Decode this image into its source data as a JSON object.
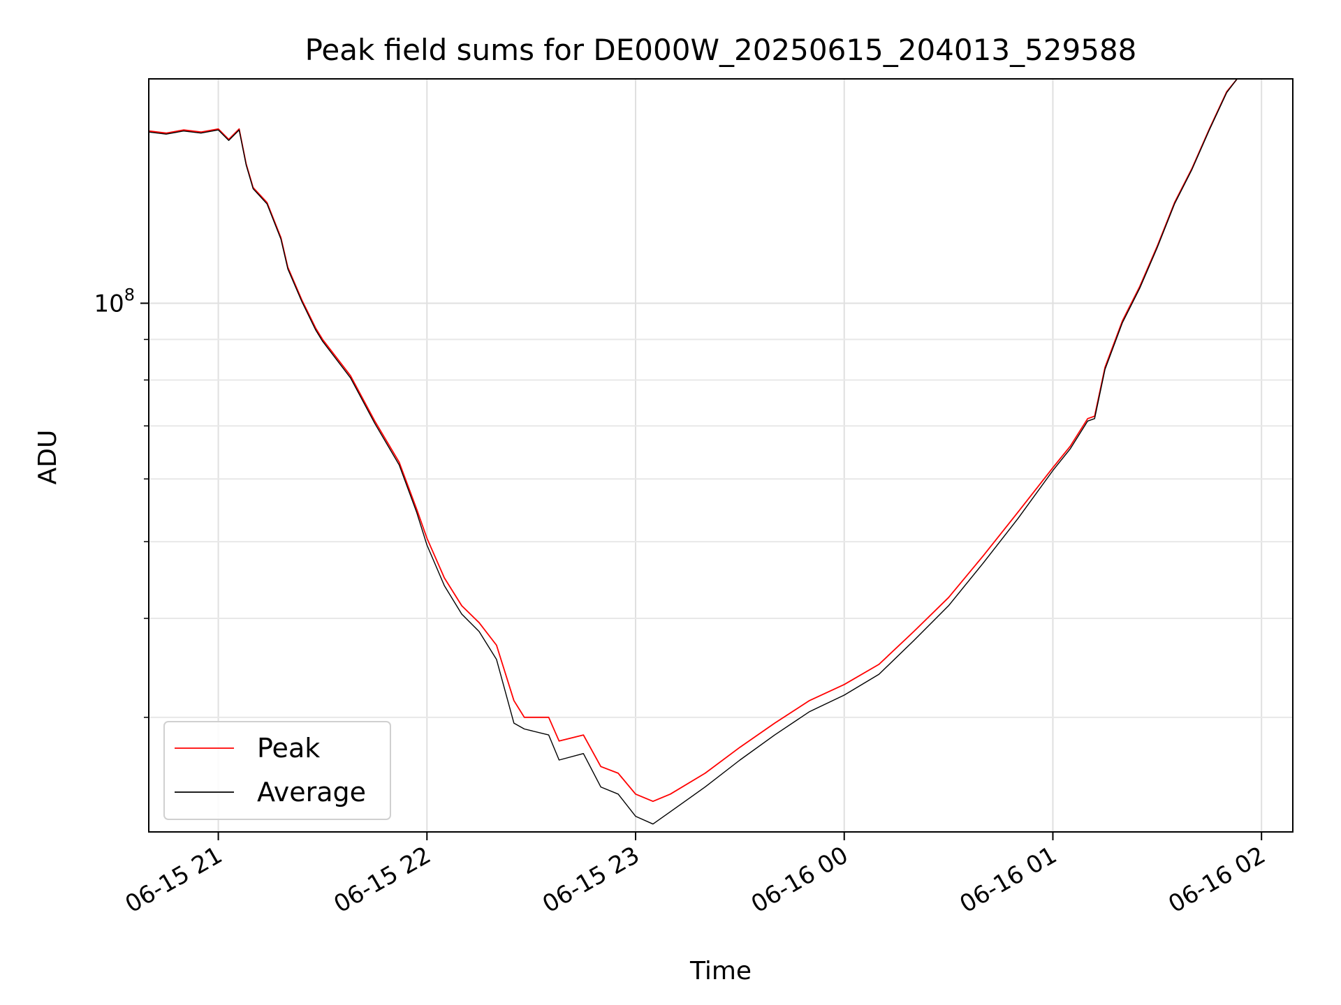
{
  "chart_data": {
    "type": "line",
    "title": "Peak field sums for DE000W_20250615_204013_529588",
    "xlabel": "Time",
    "ylabel": "ADU",
    "yscale": "log",
    "ylim": [
      21500000,
      192000000
    ],
    "xlim": [
      "2025-06-15 20:40",
      "2025-06-16 02:09"
    ],
    "x_ticks": [
      {
        "t": "2025-06-15 21:00",
        "label": "06-15 21"
      },
      {
        "t": "2025-06-15 22:00",
        "label": "06-15 22"
      },
      {
        "t": "2025-06-15 23:00",
        "label": "06-15 23"
      },
      {
        "t": "2025-06-16 00:00",
        "label": "06-16 00"
      },
      {
        "t": "2025-06-16 01:00",
        "label": "06-16 01"
      },
      {
        "t": "2025-06-16 02:00",
        "label": "06-16 02"
      }
    ],
    "y_ticks": [
      {
        "value": 100000000,
        "base": "10",
        "exp": "8"
      }
    ],
    "y_minor_ticks": [
      30000000,
      40000000,
      50000000,
      60000000,
      70000000,
      80000000,
      90000000
    ],
    "grid": true,
    "legend_position": "lower left",
    "colors": {
      "Peak": "#ff0000",
      "Average": "#000000"
    },
    "series": [
      {
        "name": "Peak",
        "x": [
          "2025-06-15 20:40",
          "2025-06-15 20:45",
          "2025-06-15 20:50",
          "2025-06-15 20:55",
          "2025-06-15 21:00",
          "2025-06-15 21:03",
          "2025-06-15 21:06",
          "2025-06-15 21:08",
          "2025-06-15 21:10",
          "2025-06-15 21:14",
          "2025-06-15 21:18",
          "2025-06-15 21:20",
          "2025-06-15 21:24",
          "2025-06-15 21:28",
          "2025-06-15 21:30",
          "2025-06-15 21:38",
          "2025-06-15 21:45",
          "2025-06-15 21:52",
          "2025-06-15 21:57",
          "2025-06-15 22:00",
          "2025-06-15 22:05",
          "2025-06-15 22:10",
          "2025-06-15 22:15",
          "2025-06-15 22:20",
          "2025-06-15 22:25",
          "2025-06-15 22:28",
          "2025-06-15 22:35",
          "2025-06-15 22:38",
          "2025-06-15 22:45",
          "2025-06-15 22:50",
          "2025-06-15 22:55",
          "2025-06-15 23:00",
          "2025-06-15 23:05",
          "2025-06-15 23:10",
          "2025-06-15 23:20",
          "2025-06-15 23:30",
          "2025-06-15 23:40",
          "2025-06-15 23:50",
          "2025-06-16 00:00",
          "2025-06-16 00:10",
          "2025-06-16 00:20",
          "2025-06-16 00:30",
          "2025-06-16 00:40",
          "2025-06-16 00:50",
          "2025-06-16 01:00",
          "2025-06-16 01:05",
          "2025-06-16 01:10",
          "2025-06-16 01:12",
          "2025-06-16 01:15",
          "2025-06-16 01:20",
          "2025-06-16 01:25",
          "2025-06-16 01:30",
          "2025-06-16 01:35",
          "2025-06-16 01:40",
          "2025-06-16 01:45",
          "2025-06-16 01:50",
          "2025-06-16 01:53",
          "2025-06-16 01:57"
        ],
        "values": [
          165000000,
          164000000,
          165500000,
          164500000,
          166000000,
          161000000,
          166000000,
          150000000,
          140000000,
          134000000,
          121000000,
          111000000,
          101000000,
          93000000,
          90000000,
          81000000,
          71000000,
          63000000,
          55000000,
          50500000,
          45000000,
          41500000,
          39500000,
          37000000,
          31500000,
          30000000,
          30000000,
          28000000,
          28500000,
          26000000,
          25500000,
          24000000,
          23500000,
          24000000,
          25500000,
          27500000,
          29500000,
          31500000,
          33000000,
          35000000,
          38500000,
          42500000,
          48000000,
          54500000,
          62000000,
          66000000,
          71500000,
          72000000,
          83000000,
          95000000,
          105000000,
          118000000,
          134000000,
          148000000,
          166000000,
          185000000,
          192000000,
          192000000
        ]
      },
      {
        "name": "Average",
        "x": [
          "2025-06-15 20:40",
          "2025-06-15 20:45",
          "2025-06-15 20:50",
          "2025-06-15 20:55",
          "2025-06-15 21:00",
          "2025-06-15 21:03",
          "2025-06-15 21:06",
          "2025-06-15 21:08",
          "2025-06-15 21:10",
          "2025-06-15 21:14",
          "2025-06-15 21:18",
          "2025-06-15 21:20",
          "2025-06-15 21:24",
          "2025-06-15 21:28",
          "2025-06-15 21:30",
          "2025-06-15 21:38",
          "2025-06-15 21:45",
          "2025-06-15 21:52",
          "2025-06-15 21:57",
          "2025-06-15 22:00",
          "2025-06-15 22:05",
          "2025-06-15 22:10",
          "2025-06-15 22:15",
          "2025-06-15 22:20",
          "2025-06-15 22:25",
          "2025-06-15 22:28",
          "2025-06-15 22:35",
          "2025-06-15 22:38",
          "2025-06-15 22:45",
          "2025-06-15 22:50",
          "2025-06-15 22:55",
          "2025-06-15 23:00",
          "2025-06-15 23:05",
          "2025-06-15 23:10",
          "2025-06-15 23:20",
          "2025-06-15 23:30",
          "2025-06-15 23:40",
          "2025-06-15 23:50",
          "2025-06-16 00:00",
          "2025-06-16 00:10",
          "2025-06-16 00:20",
          "2025-06-16 00:30",
          "2025-06-16 00:40",
          "2025-06-16 00:50",
          "2025-06-16 01:00",
          "2025-06-16 01:05",
          "2025-06-16 01:10",
          "2025-06-16 01:12",
          "2025-06-16 01:15",
          "2025-06-16 01:20",
          "2025-06-16 01:25",
          "2025-06-16 01:30",
          "2025-06-16 01:35",
          "2025-06-16 01:40",
          "2025-06-16 01:45",
          "2025-06-16 01:50",
          "2025-06-16 01:53",
          "2025-06-16 01:57"
        ],
        "values": [
          164500000,
          163500000,
          165000000,
          164000000,
          165500000,
          160500000,
          165500000,
          149500000,
          139500000,
          133500000,
          120500000,
          110500000,
          100500000,
          92500000,
          89500000,
          80500000,
          70500000,
          62500000,
          54500000,
          49500000,
          44000000,
          40500000,
          38500000,
          35500000,
          29500000,
          29000000,
          28500000,
          26500000,
          27000000,
          24500000,
          24000000,
          22500000,
          22000000,
          22800000,
          24500000,
          26500000,
          28500000,
          30500000,
          32000000,
          34000000,
          37500000,
          41500000,
          47000000,
          53500000,
          61500000,
          65500000,
          71000000,
          71500000,
          82500000,
          94500000,
          104500000,
          117500000,
          133500000,
          147500000,
          165500000,
          184500000,
          192000000,
          192000000
        ]
      }
    ]
  }
}
